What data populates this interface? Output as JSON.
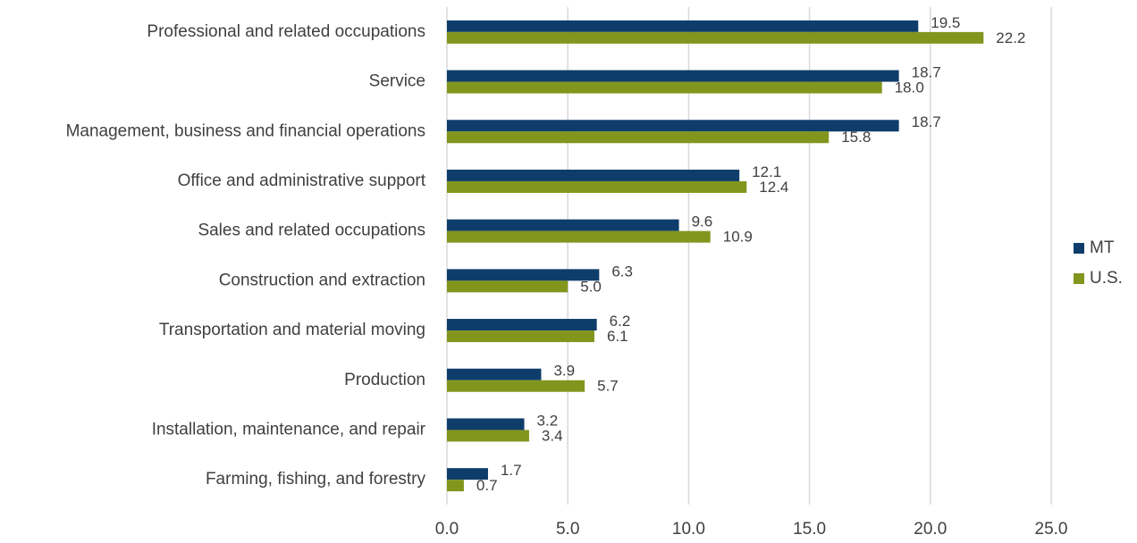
{
  "chart_data": {
    "type": "bar",
    "orientation": "horizontal",
    "categories": [
      "Professional and related occupations",
      "Service",
      "Management, business and financial operations",
      "Office and administrative support",
      "Sales and related occupations",
      "Construction and extraction",
      "Transportation and material moving",
      "Production",
      "Installation, maintenance, and repair",
      "Farming, fishing, and forestry"
    ],
    "series": [
      {
        "name": "MT",
        "color": "#0f3d6b",
        "values": [
          19.5,
          18.7,
          18.7,
          12.1,
          9.6,
          6.3,
          6.2,
          3.9,
          3.2,
          1.7
        ],
        "value_labels": [
          "19.5",
          "18.7",
          "18.7",
          "12.1",
          "9.6",
          "6.3",
          "6.2",
          "3.9",
          "3.2",
          "1.7"
        ]
      },
      {
        "name": "U.S.",
        "color": "#82961e",
        "values": [
          22.2,
          18.0,
          15.8,
          12.4,
          10.9,
          5.0,
          6.1,
          5.7,
          3.4,
          0.7
        ],
        "value_labels": [
          "22.2",
          "18.0",
          "15.8",
          "12.4",
          "10.9",
          "5.0",
          "6.1",
          "5.7",
          "3.4",
          "0.7"
        ]
      }
    ],
    "xlim": [
      0,
      25
    ],
    "xticks": [
      {
        "value": 0,
        "label": "0.0"
      },
      {
        "value": 5,
        "label": "5.0"
      },
      {
        "value": 10,
        "label": "10.0"
      },
      {
        "value": 15,
        "label": "15.0"
      },
      {
        "value": 20,
        "label": "20.0"
      },
      {
        "value": 25,
        "label": "25.0"
      }
    ],
    "grid": true,
    "legend": "right"
  }
}
